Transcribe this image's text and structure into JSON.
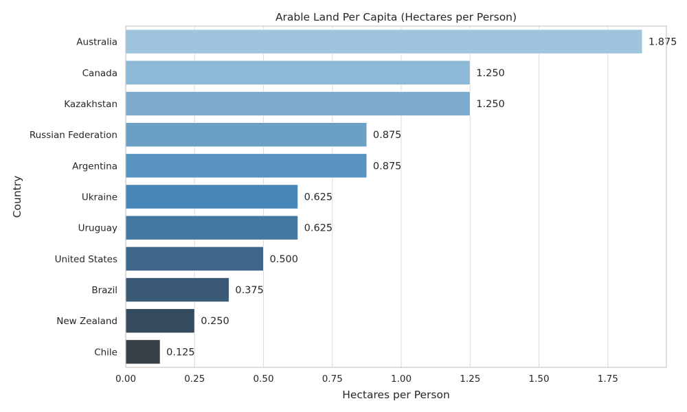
{
  "chart_data": {
    "type": "bar",
    "orientation": "horizontal",
    "title": "Arable Land Per Capita (Hectares per Person)",
    "xlabel": "Hectares per Person",
    "ylabel": "Country",
    "categories": [
      "Australia",
      "Canada",
      "Kazakhstan",
      "Russian Federation",
      "Argentina",
      "Ukraine",
      "Uruguay",
      "United States",
      "Brazil",
      "New Zealand",
      "Chile"
    ],
    "values": [
      1.875,
      1.25,
      1.25,
      0.875,
      0.875,
      0.625,
      0.625,
      0.5,
      0.375,
      0.25,
      0.125
    ],
    "value_labels": [
      "1.875",
      "1.250",
      "1.250",
      "0.875",
      "0.875",
      "0.625",
      "0.625",
      "0.500",
      "0.375",
      "0.250",
      "0.125"
    ],
    "colors": [
      "#9ec5dd",
      "#8db9d6",
      "#7caacc",
      "#6b9fc4",
      "#5993bf",
      "#4787ba",
      "#4478a0",
      "#3e6789",
      "#3a5975",
      "#374b5e",
      "#363f46"
    ],
    "xticks": [
      "0.00",
      "0.25",
      "0.50",
      "0.75",
      "1.00",
      "1.25",
      "1.50",
      "1.75"
    ],
    "xlim": [
      0,
      1.9625
    ],
    "grid": true
  }
}
